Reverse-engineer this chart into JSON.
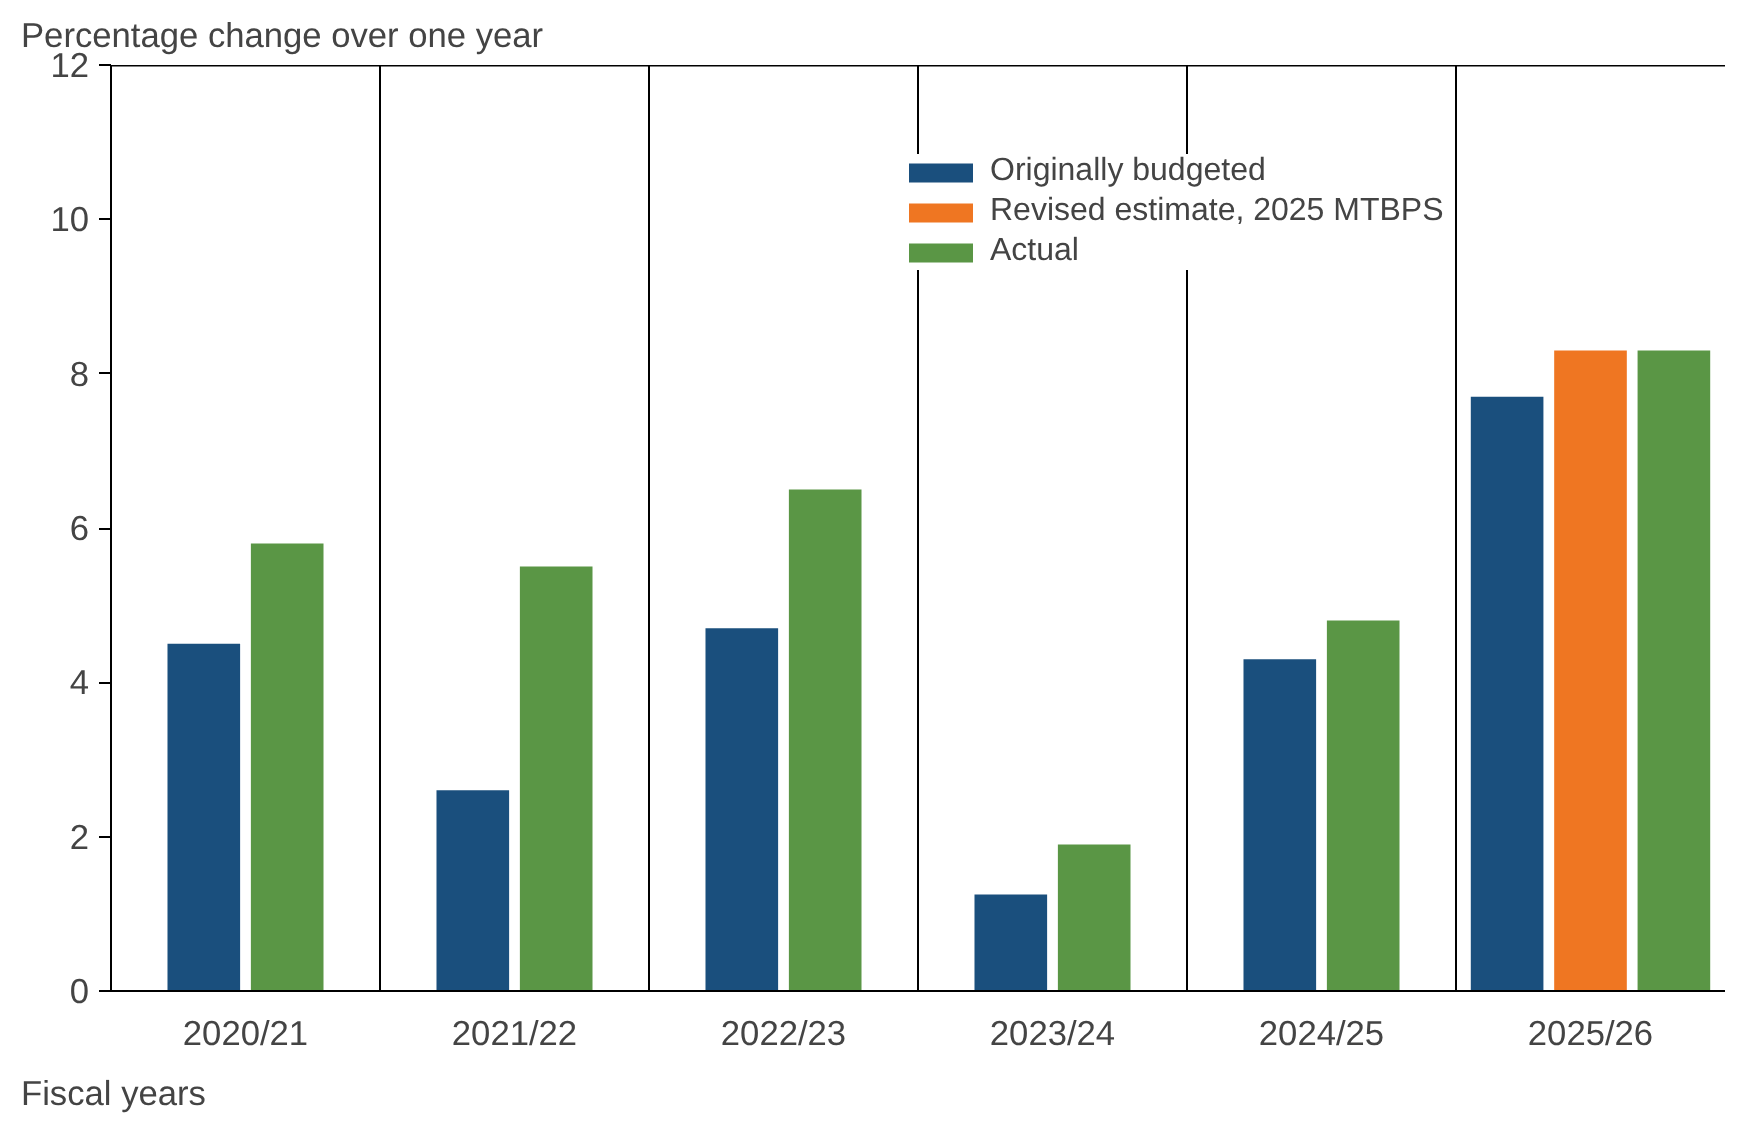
{
  "chart_data": {
    "type": "bar",
    "ylabel": "Percentage change over one year",
    "xlabel": "Fiscal years",
    "categories": [
      "2020/21",
      "2021/22",
      "2022/23",
      "2023/24",
      "2024/25",
      "2025/26"
    ],
    "series": [
      {
        "name": "Originally budgeted",
        "color": "#1a4f7d",
        "values": [
          4.5,
          2.6,
          4.7,
          1.25,
          4.3,
          7.7
        ]
      },
      {
        "name": "Revised estimate, 2025 MTBPS",
        "color": "#ef7622",
        "values": [
          null,
          null,
          null,
          null,
          null,
          8.3
        ]
      },
      {
        "name": "Actual",
        "color": "#5a9645",
        "values": [
          5.8,
          5.5,
          6.5,
          1.9,
          4.8,
          8.3
        ]
      }
    ],
    "ylim": [
      0,
      12
    ],
    "yticks": [
      0,
      2,
      4,
      6,
      8,
      10,
      12
    ],
    "grid": false,
    "legend": "top right"
  }
}
